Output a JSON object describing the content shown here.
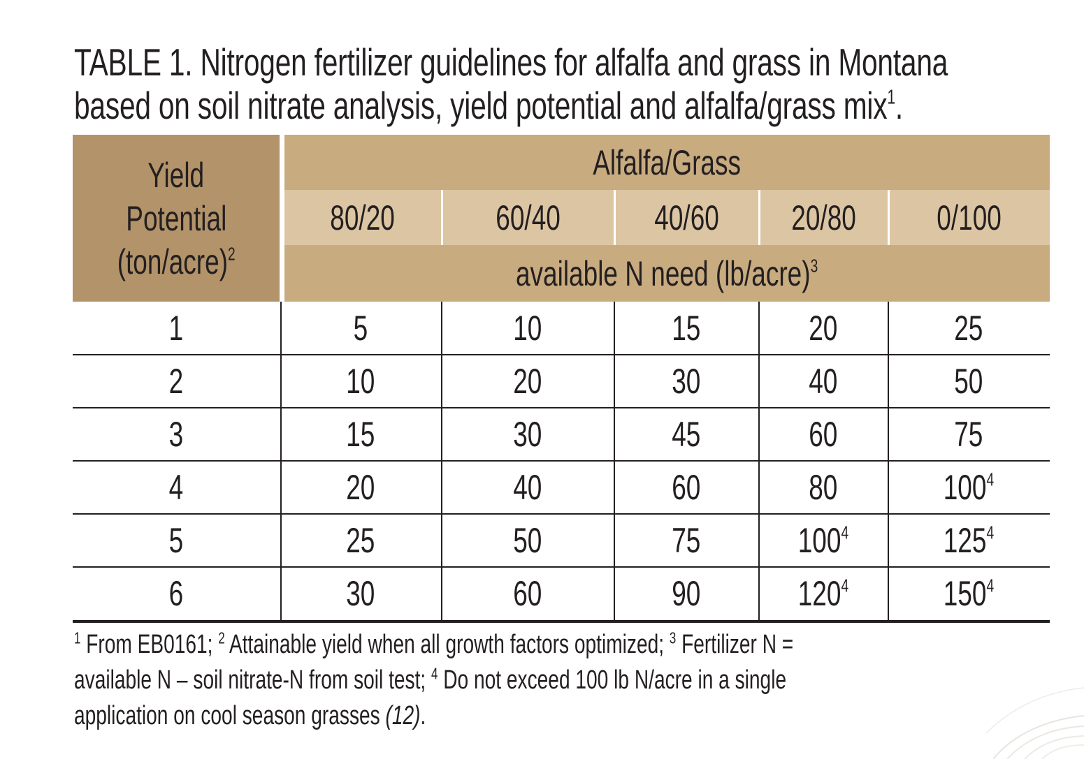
{
  "title": {
    "line1": "TABLE 1. Nitrogen fertilizer guidelines for alfalfa and grass in Montana",
    "line2": "based on soil nitrate analysis, yield potential and alfalfa/grass mix",
    "line2_sup": "1",
    "line2_end": "."
  },
  "header": {
    "yield_line1": "Yield",
    "yield_line2": "Potential",
    "yield_line3": "(ton/acre)",
    "yield_sup": "2",
    "group": "Alfalfa/Grass",
    "ratios": [
      "80/20",
      "60/40",
      "40/60",
      "20/80",
      "0/100"
    ],
    "unit": "available N need (lb/acre)",
    "unit_sup": "3"
  },
  "rows": [
    {
      "yield": "1",
      "values": [
        {
          "v": "5",
          "s": ""
        },
        {
          "v": "10",
          "s": ""
        },
        {
          "v": "15",
          "s": ""
        },
        {
          "v": "20",
          "s": ""
        },
        {
          "v": "25",
          "s": ""
        }
      ]
    },
    {
      "yield": "2",
      "values": [
        {
          "v": "10",
          "s": ""
        },
        {
          "v": "20",
          "s": ""
        },
        {
          "v": "30",
          "s": ""
        },
        {
          "v": "40",
          "s": ""
        },
        {
          "v": "50",
          "s": ""
        }
      ]
    },
    {
      "yield": "3",
      "values": [
        {
          "v": "15",
          "s": ""
        },
        {
          "v": "30",
          "s": ""
        },
        {
          "v": "45",
          "s": ""
        },
        {
          "v": "60",
          "s": ""
        },
        {
          "v": "75",
          "s": ""
        }
      ]
    },
    {
      "yield": "4",
      "values": [
        {
          "v": "20",
          "s": ""
        },
        {
          "v": "40",
          "s": ""
        },
        {
          "v": "60",
          "s": ""
        },
        {
          "v": "80",
          "s": ""
        },
        {
          "v": "100",
          "s": "4"
        }
      ]
    },
    {
      "yield": "5",
      "values": [
        {
          "v": "25",
          "s": ""
        },
        {
          "v": "50",
          "s": ""
        },
        {
          "v": "75",
          "s": ""
        },
        {
          "v": "100",
          "s": "4"
        },
        {
          "v": "125",
          "s": "4"
        }
      ]
    },
    {
      "yield": "6",
      "values": [
        {
          "v": "30",
          "s": ""
        },
        {
          "v": "60",
          "s": ""
        },
        {
          "v": "90",
          "s": ""
        },
        {
          "v": "120",
          "s": "4"
        },
        {
          "v": "150",
          "s": "4"
        }
      ]
    }
  ],
  "footnotes": {
    "n1": "1",
    "t1": " From EB0161;  ",
    "n2": "2",
    "t2": " Attainable yield when all growth factors optimized;  ",
    "n3": "3",
    "t3a": " Fertilizer N =",
    "t3b": "available N – soil nitrate-N from soil test;  ",
    "n4": "4",
    "t4a": " Do not exceed 100 lb N/acre in a single",
    "t4b": "application on cool season grasses ",
    "ref": "(12)",
    "end": "."
  },
  "colors": {
    "header_dark": "#b3936a",
    "header_mid": "#c9ab80",
    "header_light": "#dcc5a3",
    "text": "#231f20"
  }
}
